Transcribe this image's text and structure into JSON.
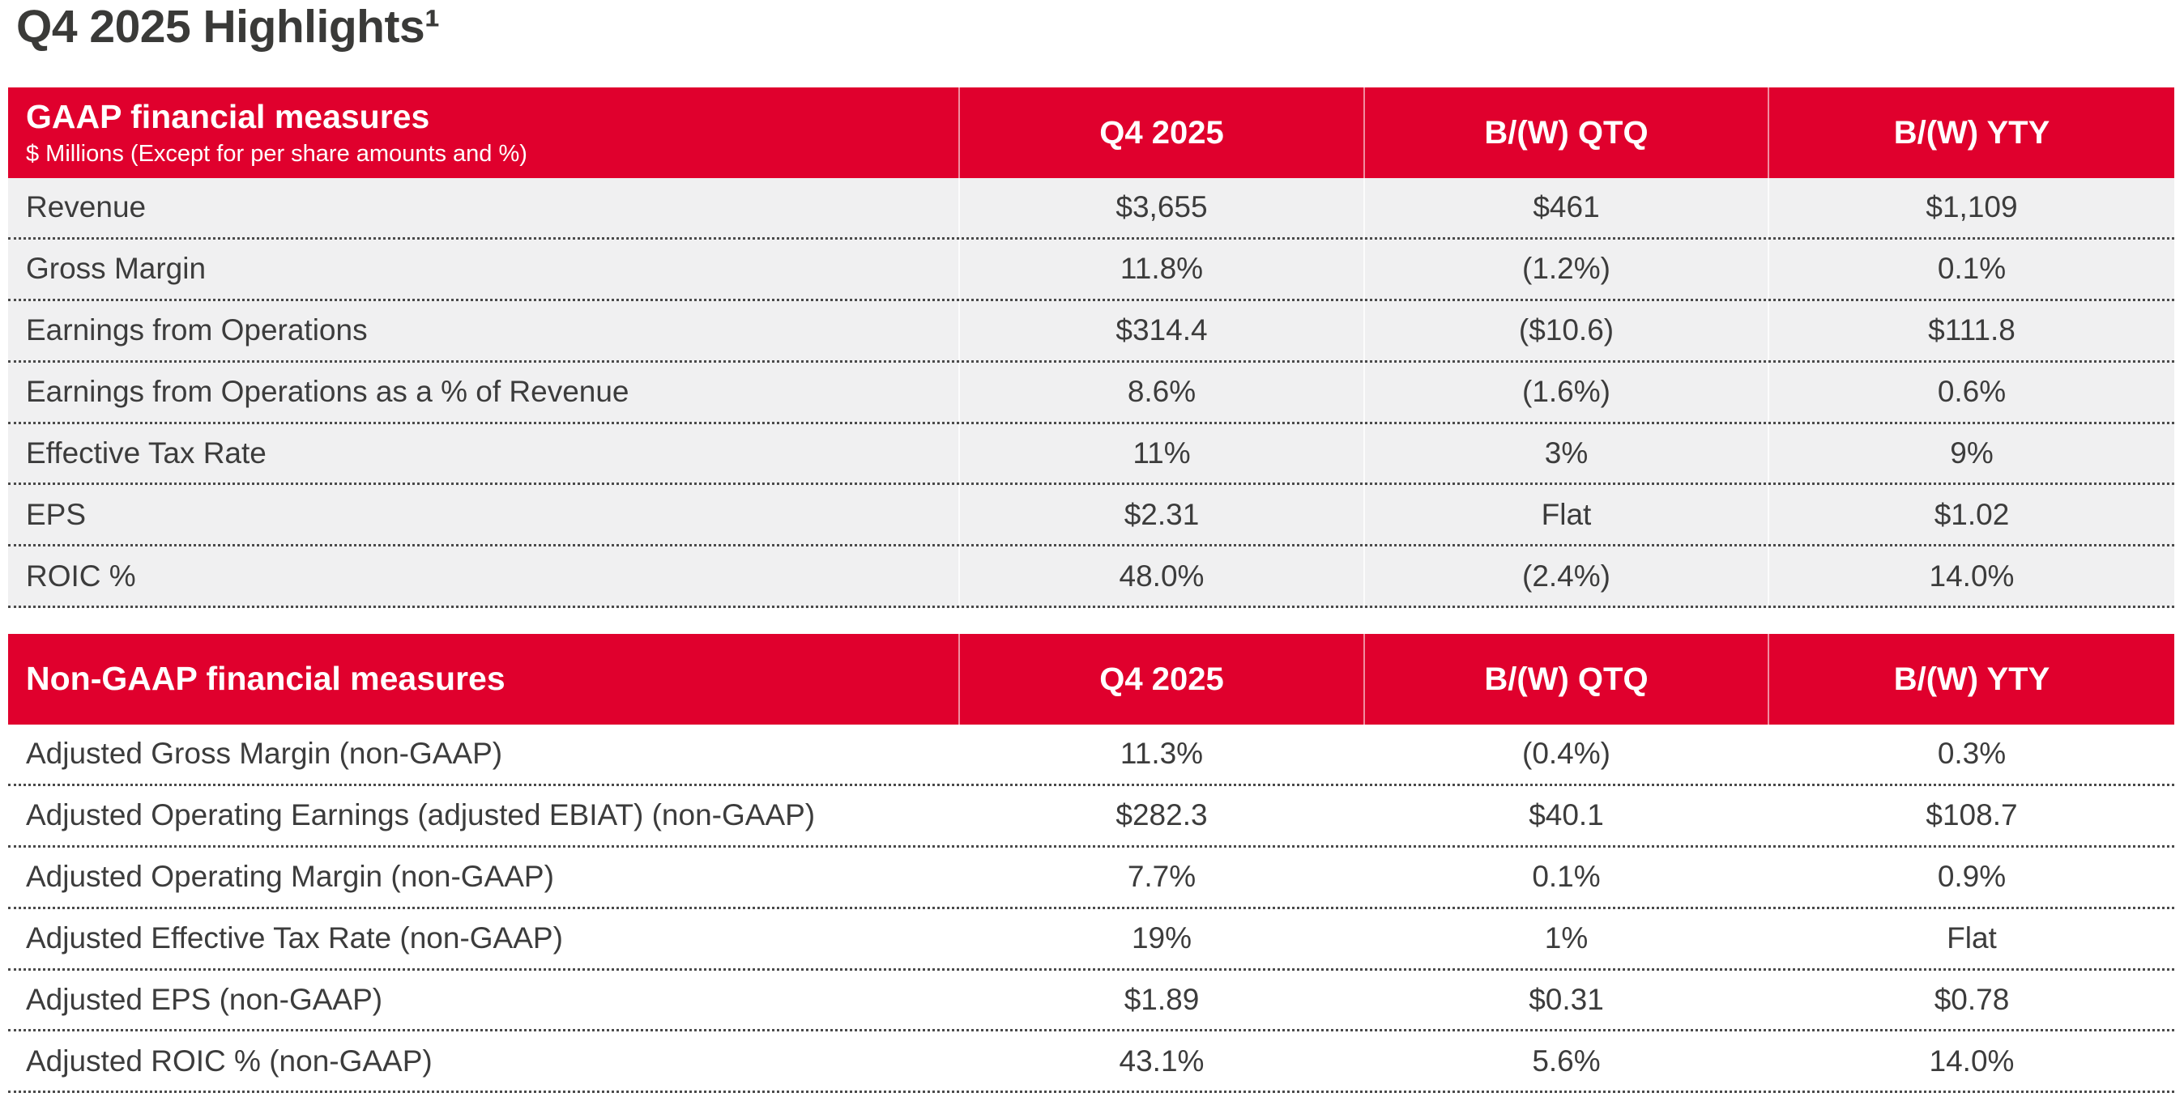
{
  "page": {
    "title": "Q4 2025 Highlights¹"
  },
  "colors": {
    "header_red": "#E0002D",
    "row_stripe_gray": "#F0F0F1",
    "text_dark": "#3C3C3C",
    "header_text": "#FFFFFF"
  },
  "tables": [
    {
      "id": "gaap",
      "striped": true,
      "header": {
        "title": "GAAP financial measures",
        "subtitle": "$ Millions (Except for per share amounts and %)",
        "columns": [
          "Q4 2025",
          "B/(W) QTQ",
          "B/(W) YTY"
        ]
      },
      "rows": [
        {
          "label": "Revenue",
          "values": [
            "$3,655",
            "$461",
            "$1,109"
          ]
        },
        {
          "label": "Gross Margin",
          "values": [
            "11.8%",
            "(1.2%)",
            "0.1%"
          ]
        },
        {
          "label": "Earnings from Operations",
          "values": [
            "$314.4",
            "($10.6)",
            "$111.8"
          ]
        },
        {
          "label": "Earnings from Operations as a % of Revenue",
          "values": [
            "8.6%",
            "(1.6%)",
            "0.6%"
          ]
        },
        {
          "label": "Effective Tax Rate",
          "values": [
            "11%",
            "3%",
            "9%"
          ]
        },
        {
          "label": "EPS",
          "values": [
            "$2.31",
            "Flat",
            "$1.02"
          ]
        },
        {
          "label": "ROIC %",
          "values": [
            "48.0%",
            "(2.4%)",
            "14.0%"
          ]
        }
      ]
    },
    {
      "id": "non_gaap",
      "striped": false,
      "header": {
        "title": "Non-GAAP financial measures",
        "subtitle": "",
        "columns": [
          "Q4 2025",
          "B/(W) QTQ",
          "B/(W) YTY"
        ]
      },
      "rows": [
        {
          "label": "Adjusted Gross Margin (non-GAAP)",
          "values": [
            "11.3%",
            "(0.4%)",
            "0.3%"
          ]
        },
        {
          "label": "Adjusted Operating Earnings (adjusted EBIAT) (non-GAAP)",
          "values": [
            "$282.3",
            "$40.1",
            "$108.7"
          ]
        },
        {
          "label": "Adjusted Operating Margin (non-GAAP)",
          "values": [
            "7.7%",
            "0.1%",
            "0.9%"
          ]
        },
        {
          "label": "Adjusted Effective Tax Rate (non-GAAP)",
          "values": [
            "19%",
            "1%",
            "Flat"
          ]
        },
        {
          "label": "Adjusted EPS (non-GAAP)",
          "values": [
            "$1.89",
            "$0.31",
            "$0.78"
          ]
        },
        {
          "label": "Adjusted ROIC % (non-GAAP)",
          "values": [
            "43.1%",
            "5.6%",
            "14.0%"
          ]
        }
      ]
    }
  ]
}
